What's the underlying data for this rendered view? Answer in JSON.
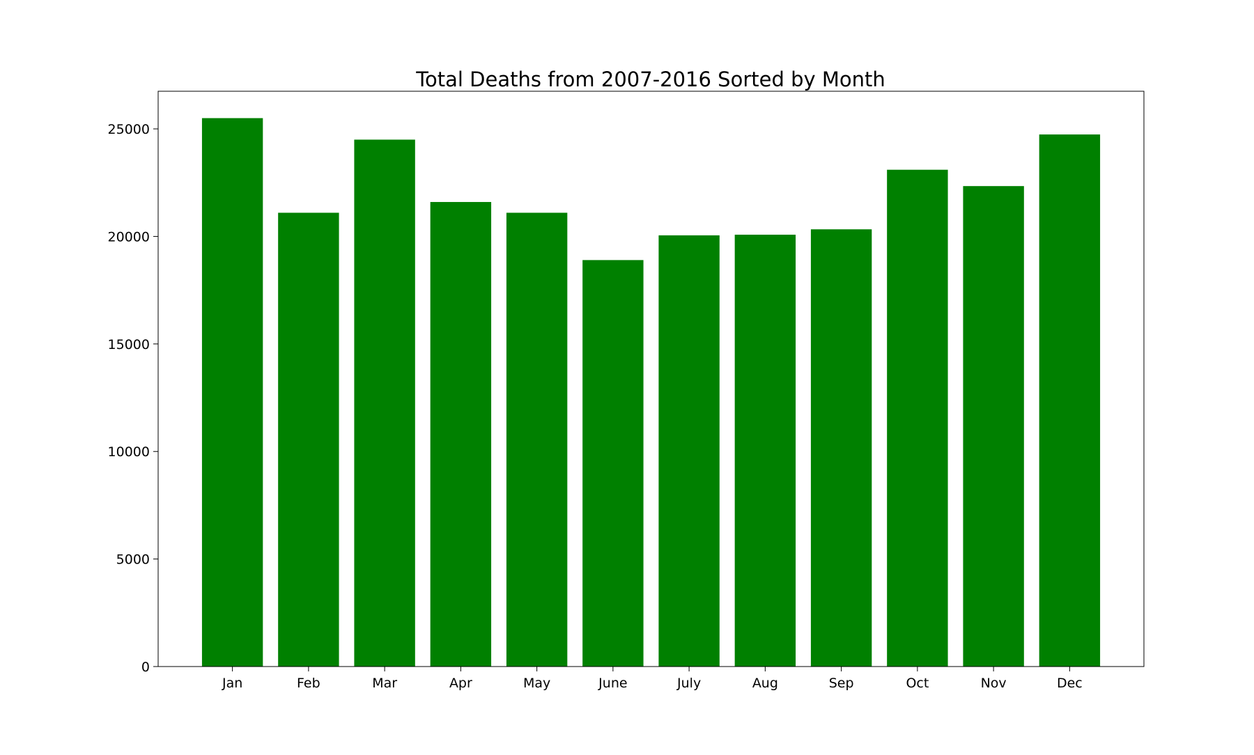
{
  "chart_data": {
    "type": "bar",
    "title": "Total Deaths from 2007-2016 Sorted by Month",
    "xlabel": "",
    "ylabel": "",
    "categories": [
      "Jan",
      "Feb",
      "Mar",
      "Apr",
      "May",
      "June",
      "July",
      "Aug",
      "Sep",
      "Oct",
      "Nov",
      "Dec"
    ],
    "values": [
      25500,
      21100,
      24500,
      21600,
      21100,
      18900,
      20050,
      20080,
      20330,
      23100,
      22340,
      24740
    ],
    "ylim": [
      0,
      26750
    ],
    "yticks": [
      0,
      5000,
      10000,
      15000,
      20000,
      25000
    ],
    "bar_color": "#008000",
    "grid": false,
    "legend": "none"
  }
}
